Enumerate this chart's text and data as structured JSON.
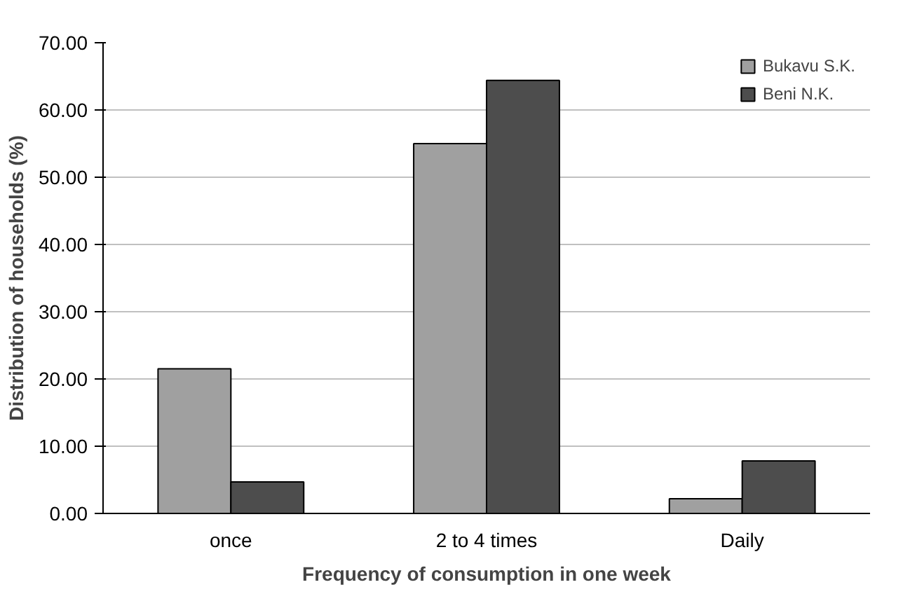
{
  "chart_data": {
    "type": "bar",
    "xlabel": "Frequency of consumption in one week",
    "ylabel": "Distribution of households (%)",
    "categories": [
      "once",
      "2 to 4 times",
      "Daily"
    ],
    "series": [
      {
        "name": "Bukavu S.K.",
        "color": "#a0a0a0",
        "values": [
          21.5,
          55.0,
          2.2
        ]
      },
      {
        "name": "Beni N.K.",
        "color": "#4d4d4d",
        "values": [
          4.7,
          64.4,
          7.8
        ]
      }
    ],
    "ylim": [
      0,
      70
    ],
    "yticks": [
      {
        "value": 0,
        "label": "0.00"
      },
      {
        "value": 10,
        "label": "10.00"
      },
      {
        "value": 20,
        "label": "20.00"
      },
      {
        "value": 30,
        "label": "30.00"
      },
      {
        "value": 40,
        "label": "40.00"
      },
      {
        "value": 50,
        "label": "50.00"
      },
      {
        "value": 60,
        "label": "60.00"
      },
      {
        "value": 70,
        "label": "70.00"
      }
    ],
    "grid": "y",
    "legend": "top right"
  }
}
